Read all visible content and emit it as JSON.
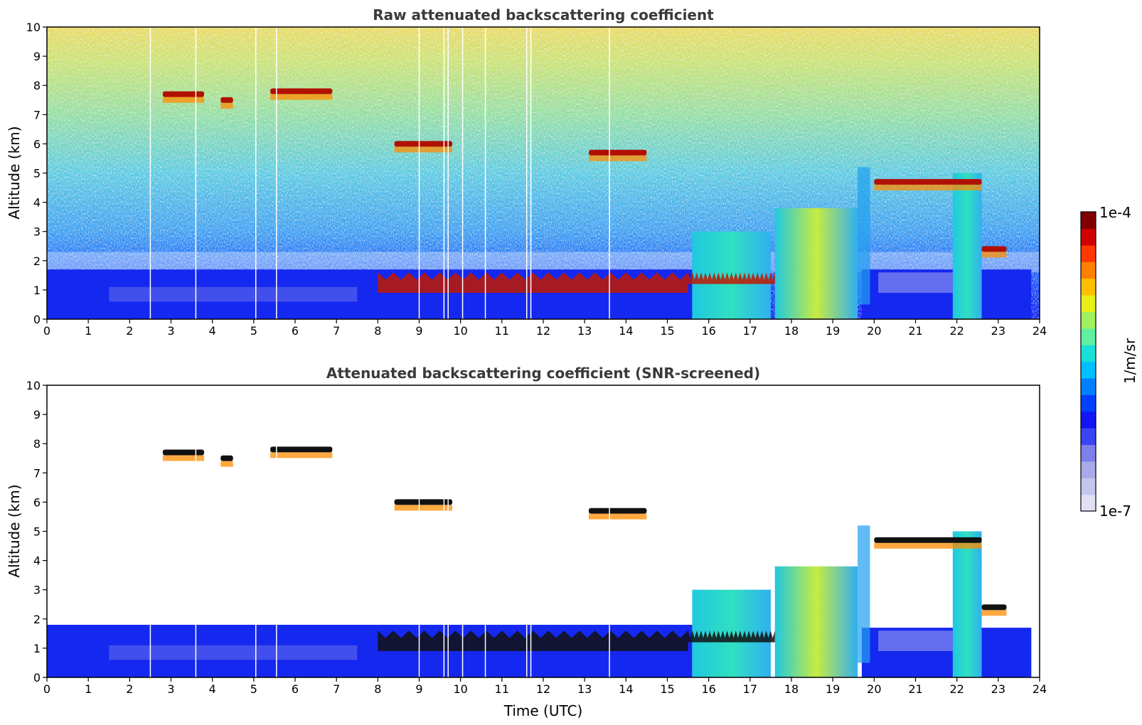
{
  "chart_data": [
    {
      "type": "heatmap",
      "title": "Raw attenuated backscattering coefficient",
      "xlabel": "",
      "ylabel": "Altitude (km)",
      "xlim": [
        0,
        24
      ],
      "ylim": [
        0,
        10
      ],
      "x_ticks": [
        "0",
        "1",
        "2",
        "3",
        "4",
        "5",
        "6",
        "7",
        "8",
        "9",
        "10",
        "11",
        "12",
        "13",
        "14",
        "15",
        "16",
        "17",
        "18",
        "19",
        "20",
        "21",
        "22",
        "23",
        "24"
      ],
      "y_ticks": [
        "0",
        "1",
        "2",
        "3",
        "4",
        "5",
        "6",
        "7",
        "8",
        "9",
        "10"
      ],
      "features": {
        "boundary_layer_top_km": 1.7,
        "noise_background": true,
        "low_clouds": [
          {
            "x0": 8.0,
            "x1": 15.5,
            "y_top": 1.6,
            "y_bot": 0.9
          },
          {
            "x0": 15.5,
            "x1": 17.6,
            "y_top": 1.6,
            "y_bot": 1.2
          }
        ],
        "high_cloud_layers": [
          {
            "x0": 2.8,
            "x1": 3.8,
            "y": 7.7,
            "intensity": "high"
          },
          {
            "x0": 4.2,
            "x1": 4.5,
            "y": 7.5,
            "intensity": "high"
          },
          {
            "x0": 5.4,
            "x1": 6.9,
            "y": 7.8,
            "intensity": "high"
          },
          {
            "x0": 8.4,
            "x1": 9.8,
            "y": 6.0,
            "intensity": "high"
          },
          {
            "x0": 13.1,
            "x1": 14.5,
            "y": 5.7,
            "intensity": "high"
          },
          {
            "x0": 20.0,
            "x1": 22.6,
            "y": 4.7,
            "intensity": "high"
          },
          {
            "x0": 22.6,
            "x1": 23.2,
            "y": 2.4,
            "intensity": "high"
          }
        ],
        "precipitation_columns": [
          {
            "x0": 15.6,
            "x1": 17.5,
            "y_top": 3.0,
            "level": "medium"
          },
          {
            "x0": 17.6,
            "x1": 19.6,
            "y_top": 3.8,
            "level": "medium-high"
          },
          {
            "x0": 21.9,
            "x1": 22.6,
            "y_top": 5.0,
            "level": "medium"
          }
        ],
        "data_gaps_x": [
          2.5,
          3.6,
          5.05,
          5.55,
          9.0,
          9.6,
          9.7,
          10.05,
          10.6,
          11.6,
          11.7,
          13.6
        ]
      }
    },
    {
      "type": "heatmap",
      "title": "Attenuated backscattering coefficient (SNR-screened)",
      "xlabel": "Time (UTC)",
      "ylabel": "Altitude (km)",
      "xlim": [
        0,
        24
      ],
      "ylim": [
        0,
        10
      ],
      "x_ticks": [
        "0",
        "1",
        "2",
        "3",
        "4",
        "5",
        "6",
        "7",
        "8",
        "9",
        "10",
        "11",
        "12",
        "13",
        "14",
        "15",
        "16",
        "17",
        "18",
        "19",
        "20",
        "21",
        "22",
        "23",
        "24"
      ],
      "y_ticks": [
        "0",
        "1",
        "2",
        "3",
        "4",
        "5",
        "6",
        "7",
        "8",
        "9",
        "10"
      ],
      "features": {
        "boundary_layer_top_km": 1.8,
        "noise_background": false,
        "masked_color": "#ffffff"
      }
    }
  ],
  "colorbar": {
    "label": "1/m/sr",
    "max_label": "1e-4",
    "min_label": "1e-7",
    "scale": "log",
    "colors": [
      "#e0e0f4",
      "#c4c6ee",
      "#a8aaea",
      "#7c80ea",
      "#3a44f0",
      "#1016f4",
      "#0040ff",
      "#0080ff",
      "#00c0ff",
      "#18e0d8",
      "#60f0a0",
      "#a0f060",
      "#e8f018",
      "#ffc000",
      "#ff8000",
      "#ff3800",
      "#d00000",
      "#800000"
    ]
  }
}
